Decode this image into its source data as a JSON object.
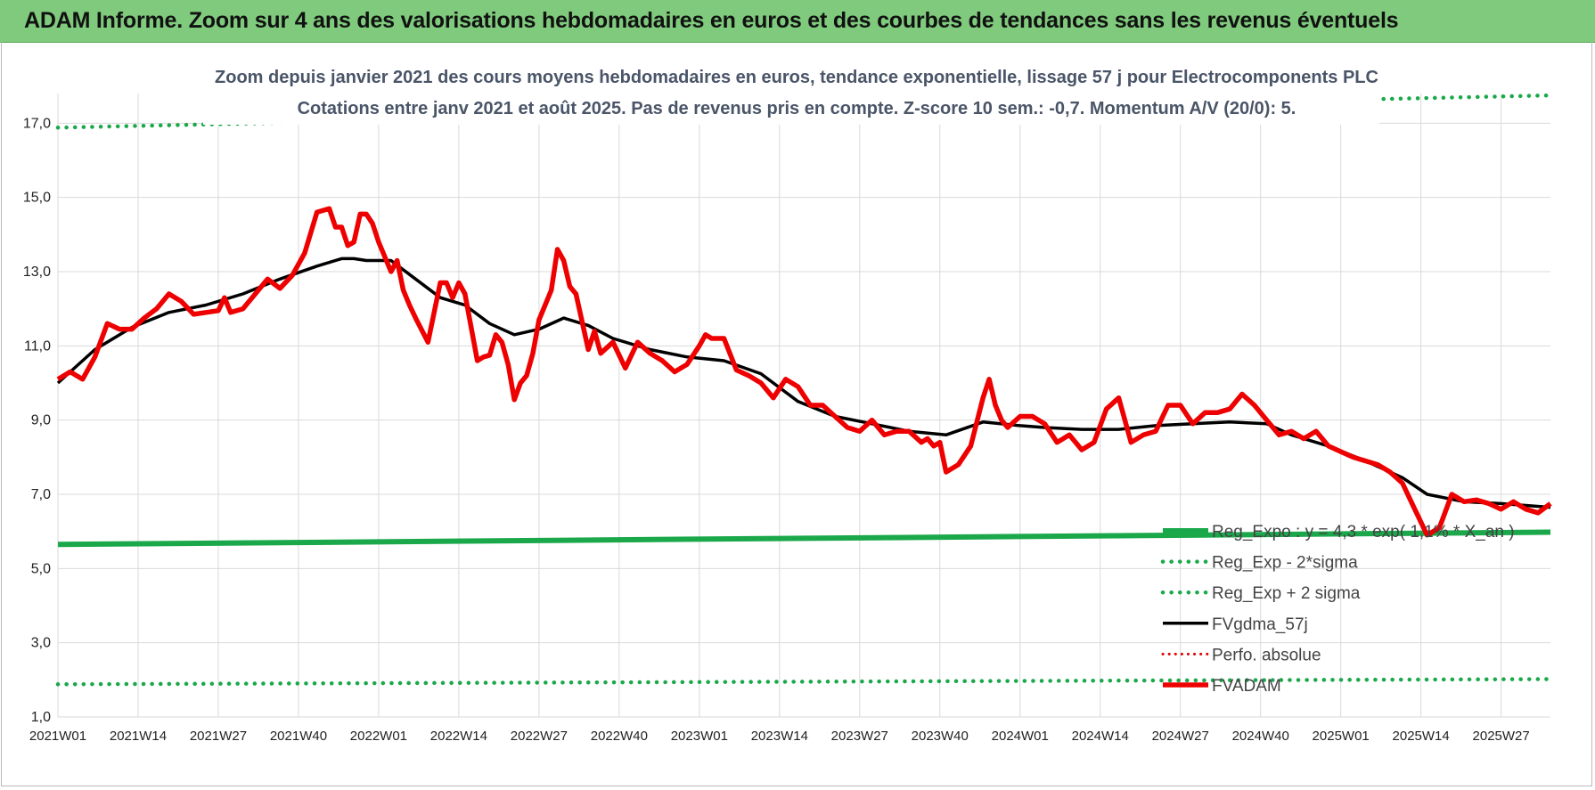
{
  "banner": {
    "title": "ADAM Informe. Zoom sur 4 ans des valorisations hebdomadaires en euros et des courbes de tendances sans les revenus éventuels"
  },
  "colors": {
    "banner_bg": "#7fca7c",
    "reg_expo": "#1aa84a",
    "sigma": "#1aa84a",
    "fvgdma": "#000000",
    "perfo": "#e00000",
    "fvadam": "#ee0000",
    "title_text": "#4a5568"
  },
  "chart_data": {
    "type": "line",
    "title_lines": [
      "Zoom depuis janvier 2021 des cours moyens hebdomadaires en euros, tendance exponentielle, lissage 57 j pour Electrocomponents PLC",
      "Cotations entre janv 2021 et août 2025.  Pas de revenus pris en compte. Z-score 10 sem.: -0,7. Momentum A/V (20/0): 5."
    ],
    "xlabel": "",
    "ylabel": "",
    "ylim": [
      1,
      17.8
    ],
    "x_range_weeks": [
      0,
      242
    ],
    "y_ticks": [
      "17,0",
      "15,0",
      "13,0",
      "11,0",
      "9,0",
      "7,0",
      "5,0",
      "3,0",
      "1,0"
    ],
    "y_tick_values": [
      17,
      15,
      13,
      11,
      9,
      7,
      5,
      3,
      1
    ],
    "x_tick_labels": [
      "2021W01",
      "2021W14",
      "2021W27",
      "2021W40",
      "2022W01",
      "2022W14",
      "2022W27",
      "2022W40",
      "2023W01",
      "2023W14",
      "2023W27",
      "2023W40",
      "2024W01",
      "2024W14",
      "2024W27",
      "2024W40",
      "2025W01",
      "2025W14",
      "2025W27"
    ],
    "x_tick_weeks": [
      0,
      13,
      26,
      39,
      52,
      65,
      78,
      91,
      104,
      117,
      130,
      143,
      156,
      169,
      182,
      195,
      208,
      221,
      234
    ],
    "grid": true,
    "legend_position": "bottom-right",
    "series": [
      {
        "name": "Reg_Expo : y = 4,3 * exp( 1,1% * X_an )",
        "style": "solid-thick",
        "x": [
          0,
          242
        ],
        "values": [
          5.65,
          5.98
        ]
      },
      {
        "name": "Reg_Exp - 2*sigma",
        "style": "dotted",
        "x": [
          0,
          242
        ],
        "values": [
          1.88,
          2.02
        ]
      },
      {
        "name": "Reg_Exp + 2 sigma",
        "style": "dotted",
        "x": [
          0,
          242
        ],
        "values": [
          16.88,
          17.75
        ]
      },
      {
        "name": "FVgdma_57j",
        "style": "solid",
        "x": [
          0,
          6,
          12,
          18,
          24,
          30,
          36,
          42,
          46,
          48,
          50,
          54,
          58,
          62,
          66,
          70,
          74,
          78,
          82,
          86,
          90,
          96,
          102,
          108,
          114,
          120,
          126,
          132,
          138,
          144,
          150,
          156,
          160,
          166,
          172,
          178,
          184,
          190,
          196,
          200,
          206,
          212,
          218,
          222,
          228,
          234,
          242
        ],
        "values": [
          10.0,
          10.9,
          11.5,
          11.9,
          12.1,
          12.4,
          12.8,
          13.15,
          13.35,
          13.35,
          13.3,
          13.3,
          12.8,
          12.3,
          12.1,
          11.6,
          11.3,
          11.45,
          11.75,
          11.55,
          11.2,
          10.9,
          10.7,
          10.6,
          10.25,
          9.5,
          9.1,
          8.9,
          8.7,
          8.6,
          8.95,
          8.85,
          8.8,
          8.75,
          8.75,
          8.85,
          8.9,
          8.95,
          8.9,
          8.6,
          8.3,
          7.9,
          7.45,
          7.0,
          6.8,
          6.75,
          6.65
        ]
      },
      {
        "name": "Perfo. absolue",
        "style": "dotted-red",
        "x": [],
        "values": []
      },
      {
        "name": "FVADAM",
        "style": "solid-thick",
        "x": [
          0,
          2,
          4,
          6,
          8,
          10,
          12,
          14,
          16,
          18,
          20,
          22,
          24,
          26,
          27,
          28,
          30,
          32,
          34,
          36,
          38,
          40,
          42,
          44,
          45,
          46,
          47,
          48,
          49,
          50,
          51,
          52,
          54,
          55,
          56,
          57,
          58,
          60,
          62,
          63,
          64,
          65,
          66,
          68,
          69,
          70,
          71,
          72,
          73,
          74,
          75,
          76,
          77,
          78,
          80,
          81,
          82,
          83,
          84,
          86,
          87,
          88,
          90,
          92,
          94,
          96,
          98,
          100,
          102,
          104,
          105,
          106,
          108,
          110,
          112,
          114,
          116,
          118,
          120,
          122,
          124,
          126,
          128,
          130,
          132,
          134,
          136,
          138,
          140,
          141,
          142,
          143,
          144,
          146,
          148,
          150,
          151,
          152,
          153,
          154,
          156,
          158,
          160,
          162,
          164,
          166,
          168,
          170,
          172,
          174,
          176,
          178,
          180,
          182,
          184,
          186,
          188,
          190,
          192,
          194,
          196,
          198,
          200,
          202,
          204,
          206,
          208,
          210,
          212,
          214,
          216,
          218,
          220,
          222,
          224,
          226,
          228,
          230,
          232,
          234,
          236,
          238,
          240,
          242
        ],
        "values": [
          10.1,
          10.3,
          10.1,
          10.7,
          11.6,
          11.45,
          11.45,
          11.75,
          12.0,
          12.4,
          12.2,
          11.85,
          11.9,
          11.95,
          12.3,
          11.9,
          12.0,
          12.4,
          12.8,
          12.55,
          12.9,
          13.5,
          14.6,
          14.7,
          14.2,
          14.2,
          13.7,
          13.8,
          14.55,
          14.55,
          14.3,
          13.8,
          13.0,
          13.3,
          12.5,
          12.1,
          11.75,
          11.1,
          12.7,
          12.7,
          12.3,
          12.7,
          12.4,
          10.6,
          10.7,
          10.75,
          11.3,
          11.1,
          10.5,
          9.55,
          10.0,
          10.2,
          10.8,
          11.7,
          12.5,
          13.6,
          13.3,
          12.6,
          12.4,
          10.9,
          11.4,
          10.8,
          11.1,
          10.4,
          11.1,
          10.8,
          10.6,
          10.3,
          10.5,
          11.0,
          11.3,
          11.2,
          11.2,
          10.35,
          10.2,
          10.0,
          9.6,
          10.1,
          9.9,
          9.4,
          9.4,
          9.1,
          8.8,
          8.7,
          9.0,
          8.6,
          8.7,
          8.7,
          8.4,
          8.5,
          8.3,
          8.4,
          7.6,
          7.8,
          8.3,
          9.6,
          10.1,
          9.4,
          9.0,
          8.8,
          9.1,
          9.1,
          8.9,
          8.4,
          8.6,
          8.2,
          8.4,
          9.3,
          9.6,
          8.4,
          8.6,
          8.7,
          9.4,
          9.4,
          8.9,
          9.2,
          9.2,
          9.3,
          9.7,
          9.4,
          9.0,
          8.6,
          8.7,
          8.5,
          8.7,
          8.3,
          8.15,
          8.0,
          7.9,
          7.8,
          7.6,
          7.3,
          6.6,
          5.9,
          6.1,
          7.0,
          6.8,
          6.85,
          6.75,
          6.6,
          6.8,
          6.6,
          6.5,
          6.75
        ]
      }
    ]
  }
}
